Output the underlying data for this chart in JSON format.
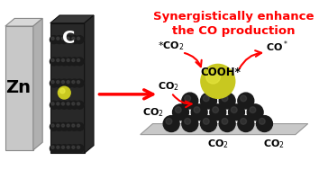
{
  "bg_color": "#ffffff",
  "title_text": "Synergistically enhance\nthe CO production",
  "title_color": "#ff0000",
  "title_fontsize": 9.5,
  "zn_label": "Zn",
  "c_label": "C",
  "label_fontsize": 14,
  "arrow_color": "#ff0000",
  "black_sphere_color": "#1a1a1a",
  "black_sphere_highlight": "#4a4a4a",
  "yellow_sphere_color": "#c8c820",
  "yellow_sphere_highlight": "#e8e840",
  "plate_color": "#d0d0d0",
  "plate_edge_color": "#aaaaaa",
  "zn_plate_color": "#c8c8c8",
  "carbon_plate_color": "#404040",
  "carbon_plate_dark": "#282828",
  "annotations": [
    "*CO₂",
    "COOH*",
    "CO*",
    "CO₂",
    "CO₂",
    "CO₂",
    "CO₂"
  ],
  "annotation_fontsize": 8
}
